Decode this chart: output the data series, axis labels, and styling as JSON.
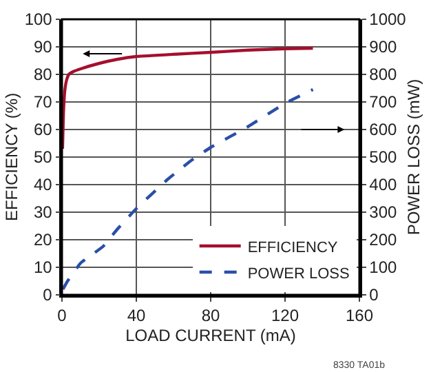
{
  "chart_data": {
    "type": "line",
    "xlabel": "LOAD CURRENT (mA)",
    "ylabel": "EFFICIENCY (%)",
    "y2label": "POWER LOSS (mW)",
    "series": [
      {
        "name": "EFFICIENCY",
        "color": "#a50f2d",
        "line_style": "solid",
        "x": [
          0.3,
          0.8,
          1.5,
          2.5,
          3.7,
          6,
          10,
          20,
          30,
          40,
          60,
          80,
          100,
          120,
          135
        ],
        "values": [
          53,
          66,
          74,
          78,
          80,
          81,
          82,
          84,
          85.5,
          86.5,
          87.3,
          88,
          88.8,
          89.3,
          89.5
        ]
      },
      {
        "name": "POWER LOSS",
        "color": "#2b4fa8",
        "line_style": "dashed",
        "axis": "y2",
        "x": [
          0.5,
          3,
          10,
          22,
          30,
          40,
          57,
          70,
          80,
          100,
          120,
          135
        ],
        "values": [
          20,
          50,
          115,
          175,
          240,
          313,
          420,
          490,
          535,
          610,
          695,
          745
        ]
      }
    ],
    "xlim": [
      0,
      160
    ],
    "xticks": [
      0,
      40,
      80,
      120,
      160
    ],
    "ylim": [
      0,
      100
    ],
    "yticks": [
      0,
      10,
      20,
      30,
      40,
      50,
      60,
      70,
      80,
      90,
      100
    ],
    "y2lim": [
      0,
      1000
    ],
    "y2ticks": [
      0,
      100,
      200,
      300,
      400,
      500,
      600,
      700,
      800,
      900,
      1000
    ],
    "grid": true,
    "legend": "bottom right",
    "marker": "none",
    "annotations": [
      "8330 TA01b"
    ]
  }
}
